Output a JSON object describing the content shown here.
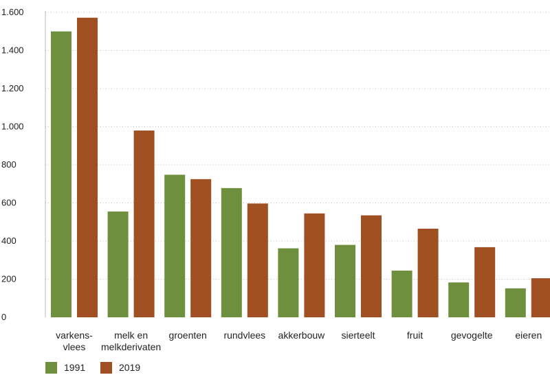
{
  "chart_data": {
    "type": "bar",
    "categories": [
      [
        "varkens-",
        "vlees"
      ],
      [
        "melk en",
        "melkderivaten"
      ],
      [
        "groenten"
      ],
      [
        "rundvlees"
      ],
      [
        "akkerbouw"
      ],
      [
        "sierteelt"
      ],
      [
        "fruit"
      ],
      [
        "gevogelte"
      ],
      [
        "eieren"
      ]
    ],
    "series": [
      {
        "name": "1991",
        "color": "#6e8f3d",
        "values": [
          1500,
          555,
          748,
          678,
          362,
          380,
          245,
          183,
          152
        ]
      },
      {
        "name": "2019",
        "color": "#a04f23",
        "values": [
          1572,
          980,
          725,
          597,
          545,
          535,
          465,
          368,
          205
        ]
      }
    ],
    "ylim": [
      0,
      1600
    ],
    "yticks": [
      0,
      200,
      400,
      600,
      800,
      1000,
      1200,
      1400,
      1600
    ],
    "ytick_labels": [
      "0",
      "200",
      "400",
      "600",
      "800",
      "1.000",
      "1.200",
      "1.400",
      "1.600"
    ],
    "grid": true,
    "legend_position": "bottom-left",
    "title": "",
    "xlabel": "",
    "ylabel": ""
  }
}
